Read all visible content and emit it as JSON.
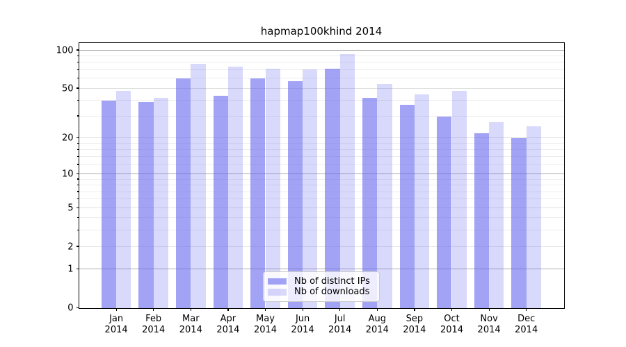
{
  "chart_data": {
    "type": "bar",
    "title": "hapmap100khind 2014",
    "xlabel": "",
    "ylabel": "",
    "yscale": "log1p",
    "ylim": [
      0,
      115
    ],
    "grid": true,
    "categories": [
      "Jan",
      "Feb",
      "Mar",
      "Apr",
      "May",
      "Jun",
      "Jul",
      "Aug",
      "Sep",
      "Oct",
      "Nov",
      "Dec"
    ],
    "year_label": "2014",
    "ytick_labels": [
      "100",
      "50",
      "20",
      "10",
      "5",
      "2",
      "1",
      "0"
    ],
    "ytick_values": [
      100,
      50,
      20,
      10,
      5,
      2,
      1,
      0
    ],
    "decade_tick_values": [
      100,
      10,
      1
    ],
    "minor_tick_values": [
      90,
      80,
      70,
      60,
      40,
      30,
      18,
      16,
      14,
      12,
      9,
      8,
      7,
      6,
      4,
      3
    ],
    "series": [
      {
        "name": "Nb of distinct IPs",
        "color": "rgba(102,102,238,0.6)",
        "color_hex_on_white": "#a3a3f5",
        "values": [
          40,
          39,
          60,
          44,
          60,
          57,
          72,
          42,
          37,
          30,
          22,
          20
        ]
      },
      {
        "name": "Nb of downloads",
        "color": "rgba(102,102,238,0.25)",
        "color_hex_on_white": "#d9d9fb",
        "values": [
          48,
          42,
          78,
          74,
          72,
          71,
          93,
          54,
          45,
          48,
          27,
          25
        ]
      }
    ],
    "legend": {
      "position": "lower center"
    },
    "colors": {
      "gridline_decade": "#ababab",
      "gridline_labeled": "#e0e0e0",
      "gridline_minor": "#ededed",
      "spine": "#000000",
      "text": "#000000"
    }
  }
}
